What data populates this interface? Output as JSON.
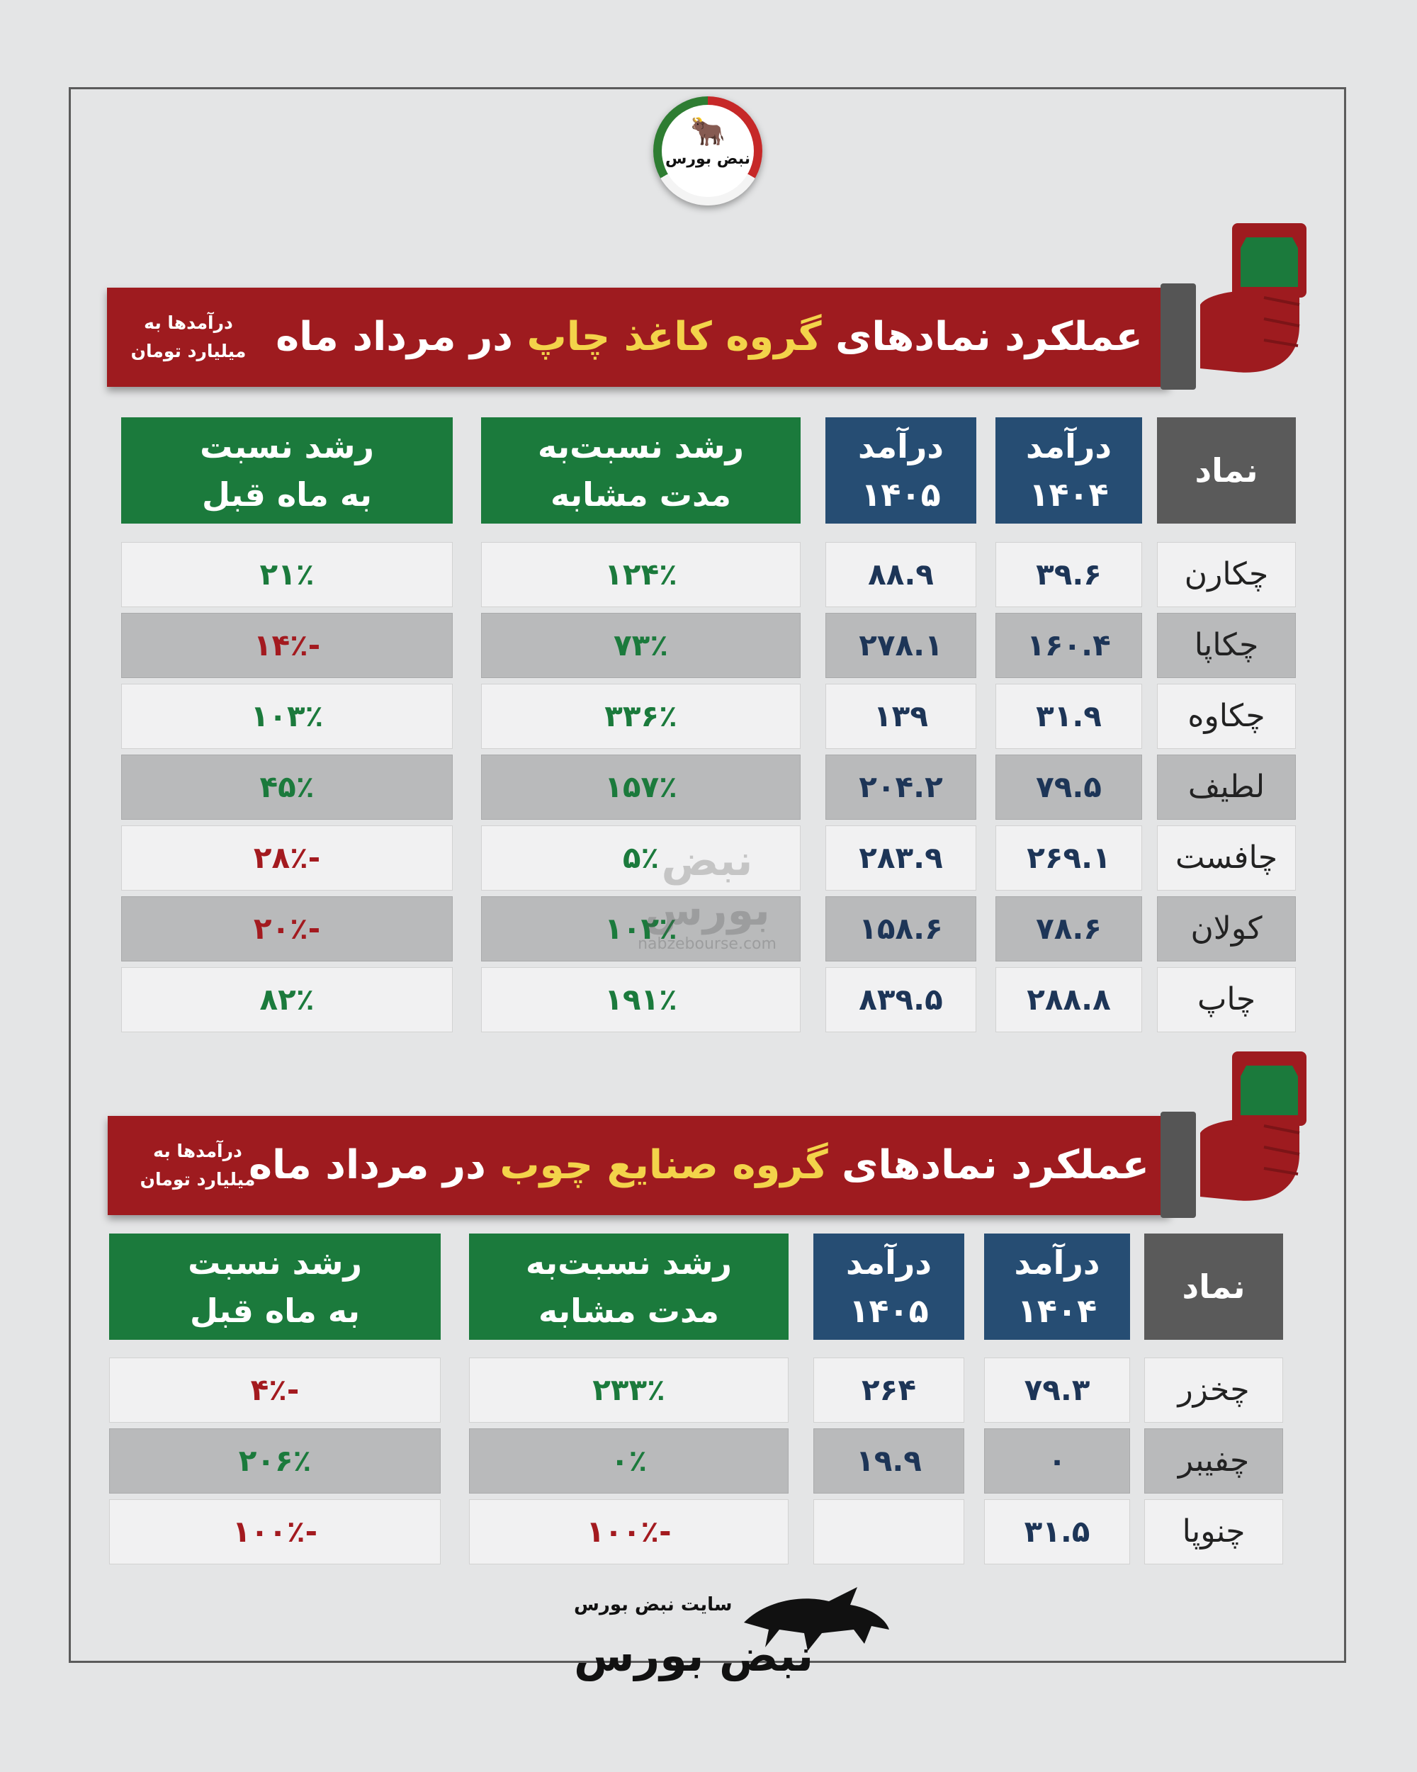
{
  "brand": {
    "logo_text": "نبض بورس",
    "watermark_text": "نبض بورس",
    "watermark_url": "nabzebourse.com",
    "footer_site": "سایت نبض بورس",
    "footer_brand": "نبض بورس"
  },
  "colors": {
    "banner_red": "#9e1b1f",
    "highlight_yellow": "#f3d34a",
    "header_gray": "#5a5a5a",
    "header_blue": "#264d73",
    "header_green": "#1b7a3c",
    "positive_green": "#1b7a3c",
    "negative_red": "#a31a1f"
  },
  "headers": {
    "symbol": "نماد",
    "rev_1404_a": "درآمد",
    "rev_1404_b": "۱۴۰۴",
    "rev_1405_a": "درآمد",
    "rev_1405_b": "۱۴۰۵",
    "yoy_a": "رشد نسبت‌به",
    "yoy_b": "مدت مشابه",
    "mom_a": "رشد نسبت",
    "mom_b": "به ماه قبل"
  },
  "section1": {
    "title_pre": "عملکرد نمادهای ",
    "title_hl": "گروه کاغذ چاپ",
    "title_post": " در مرداد ماه",
    "unit_a": "درآمدها به",
    "unit_b": "میلیارد تومان",
    "rows": [
      {
        "symbol": "چکارن",
        "rev1404": "۳۹.۶",
        "rev1405": "۸۸.۹",
        "yoy": "۱۲۴٪",
        "mom": "۲۱٪"
      },
      {
        "symbol": "چکاپا",
        "rev1404": "۱۶۰.۴",
        "rev1405": "۲۷۸.۱",
        "yoy": "۷۳٪",
        "mom": "-۱۴٪"
      },
      {
        "symbol": "چکاوه",
        "rev1404": "۳۱.۹",
        "rev1405": "۱۳۹",
        "yoy": "۳۳۶٪",
        "mom": "۱۰۳٪"
      },
      {
        "symbol": "لطیف",
        "rev1404": "۷۹.۵",
        "rev1405": "۲۰۴.۲",
        "yoy": "۱۵۷٪",
        "mom": "۴۵٪"
      },
      {
        "symbol": "چافست",
        "rev1404": "۲۶۹.۱",
        "rev1405": "۲۸۳.۹",
        "yoy": "۵٪",
        "mom": "-۲۸٪"
      },
      {
        "symbol": "کولان",
        "rev1404": "۷۸.۶",
        "rev1405": "۱۵۸.۶",
        "yoy": "۱۰۲٪",
        "mom": "-۲۰٪"
      },
      {
        "symbol": "چاپ",
        "rev1404": "۲۸۸.۸",
        "rev1405": "۸۳۹.۵",
        "yoy": "۱۹۱٪",
        "mom": "۸۲٪"
      }
    ]
  },
  "section2": {
    "title_pre": "عملکرد نمادهای ",
    "title_hl": "گروه صنایع چوب",
    "title_post": " در مرداد ماه",
    "unit_a": "درآمدها به",
    "unit_b": "میلیارد تومان",
    "rows": [
      {
        "symbol": "چخزر",
        "rev1404": "۷۹.۳",
        "rev1405": "۲۶۴",
        "yoy": "۲۳۳٪",
        "mom": "-۴٪"
      },
      {
        "symbol": "چفیبر",
        "rev1404": "۰",
        "rev1405": "۱۹.۹",
        "yoy": "۰٪",
        "mom": "۲۰۶٪"
      },
      {
        "symbol": "چنوپا",
        "rev1404": "۳۱.۵",
        "rev1405": "",
        "yoy": "-۱۰۰٪",
        "mom": "-۱۰۰٪"
      }
    ]
  }
}
